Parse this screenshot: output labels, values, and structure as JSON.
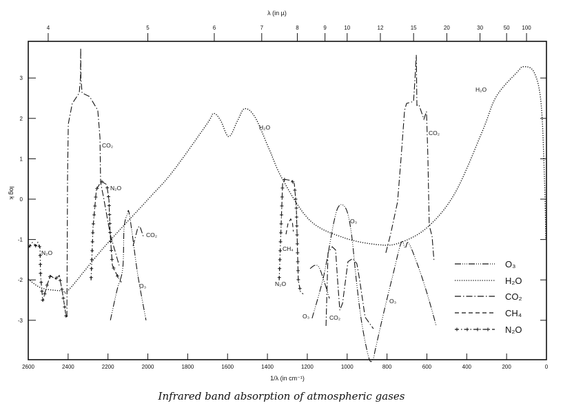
{
  "chart_data": {
    "type": "line",
    "title": "Infrared band absorption of atmospheric gases",
    "xlabel": "1/λ (in cm⁻¹)",
    "x2label": "λ (in µ)",
    "ylabel": "log k",
    "xlim": [
      2600,
      0
    ],
    "ylim": [
      -3.95,
      3.9
    ],
    "x_ticks": [
      2600,
      2400,
      2200,
      2000,
      1800,
      1600,
      1400,
      1200,
      1000,
      800,
      600,
      400,
      200,
      0
    ],
    "x_tick_labels": [
      "2600",
      "2400",
      "2200",
      "2000",
      "1800",
      "1600",
      "1400",
      "1200",
      "1000",
      "800",
      "600",
      "400",
      "200",
      "0"
    ],
    "y_ticks": [
      3,
      2,
      1,
      0,
      -1,
      -2,
      -3
    ],
    "y_tick_labels": [
      "3",
      "2",
      "1",
      "0",
      "-1",
      "-2",
      "-3"
    ],
    "x2_ticks_micron": [
      4,
      5,
      6,
      7,
      8,
      9,
      10,
      12,
      15,
      20,
      30,
      50,
      100
    ],
    "x2_tick_labels": [
      "4",
      "5",
      "6",
      "7",
      "8",
      "9",
      "10",
      "12",
      "15",
      "20",
      "30",
      "50",
      "100"
    ],
    "legend_position": "bottom-right",
    "series": [
      {
        "name": "O3",
        "label": "O₃",
        "style": "dash-dot-dot",
        "segments": [
          [
            [
              2188,
              -3.0
            ],
            [
              2154,
              -2.24
            ],
            [
              2126,
              -1.72
            ],
            [
              2119,
              -0.7
            ],
            [
              2102,
              -0.36
            ],
            [
              2095,
              -0.32
            ],
            [
              2078,
              -0.87
            ],
            [
              2050,
              -1.89
            ],
            [
              2009,
              -3.0
            ]
          ],
          [
            [
              1186,
              -1.72
            ],
            [
              1162,
              -1.64
            ],
            [
              1141,
              -1.69
            ],
            [
              1117,
              -2.01
            ],
            [
              1089,
              -2.46
            ]
          ],
          [
            [
              1176,
              -2.95
            ],
            [
              1117,
              -1.89
            ],
            [
              1065,
              -0.53
            ],
            [
              1037,
              -0.15
            ],
            [
              1003,
              -0.27
            ],
            [
              978,
              -0.87
            ],
            [
              954,
              -2.01
            ],
            [
              926,
              -3.09
            ],
            [
              890,
              -3.95
            ],
            [
              870,
              -3.95
            ],
            [
              857,
              -3.69
            ],
            [
              816,
              -2.8
            ],
            [
              771,
              -1.89
            ],
            [
              729,
              -1.08
            ],
            [
              709,
              -1.21
            ],
            [
              691,
              -1.09
            ],
            [
              643,
              -1.67
            ],
            [
              598,
              -2.35
            ],
            [
              553,
              -3.14
            ]
          ]
        ]
      },
      {
        "name": "H2O",
        "label": "H₂O",
        "style": "dotted",
        "segments": [
          [
            [
              2600,
              -1.98
            ],
            [
              2534,
              -2.2
            ],
            [
              2431,
              -2.27
            ],
            [
              2396,
              -2.24
            ],
            [
              2223,
              -1.21
            ],
            [
              1998,
              0
            ],
            [
              1877,
              0.67
            ],
            [
              1704,
              1.86
            ],
            [
              1670,
              2.12
            ],
            [
              1635,
              1.95
            ],
            [
              1594,
              1.55
            ],
            [
              1549,
              1.95
            ],
            [
              1514,
              2.24
            ],
            [
              1462,
              2.03
            ],
            [
              1393,
              1.26
            ],
            [
              1324,
              0.49
            ],
            [
              1186,
              -0.53
            ],
            [
              1013,
              -0.96
            ],
            [
              840,
              -1.13
            ],
            [
              736,
              -1.08
            ],
            [
              598,
              -0.7
            ],
            [
              459,
              0.15
            ],
            [
              321,
              1.69
            ],
            [
              252,
              2.54
            ],
            [
              148,
              3.14
            ],
            [
              114,
              3.28
            ],
            [
              62,
              3.14
            ],
            [
              27,
              2.37
            ],
            [
              10,
              0.5
            ],
            [
              3,
              -1.0
            ]
          ]
        ]
      },
      {
        "name": "CO2",
        "label": "CO₂",
        "style": "dash-dot",
        "segments": [
          [
            [
              2406,
              -2.92
            ],
            [
              2403,
              0.5
            ],
            [
              2399,
              1.86
            ],
            [
              2379,
              2.37
            ],
            [
              2344,
              2.63
            ],
            [
              2338,
              3.0
            ],
            [
              2337,
              3.74
            ],
            [
              2336,
              3.0
            ],
            [
              2330,
              2.63
            ],
            [
              2292,
              2.54
            ],
            [
              2251,
              2.2
            ],
            [
              2240,
              1.52
            ],
            [
              2237,
              0.41
            ],
            [
              2223,
              0.07
            ],
            [
              2189,
              -0.87
            ],
            [
              2154,
              -1.47
            ],
            [
              2144,
              -1.64
            ]
          ],
          [
            [
              2074,
              -1.16
            ],
            [
              2050,
              -0.7
            ],
            [
              2040,
              -0.67
            ],
            [
              2023,
              -0.92
            ]
          ],
          [
            [
              1106,
              -3.14
            ],
            [
              1096,
              -1.33
            ],
            [
              1075,
              -1.18
            ],
            [
              1058,
              -1.26
            ],
            [
              1048,
              -2.01
            ],
            [
              1037,
              -2.75
            ],
            [
              1023,
              -2.58
            ],
            [
              996,
              -1.55
            ],
            [
              972,
              -1.47
            ],
            [
              951,
              -1.6
            ],
            [
              937,
              -2.01
            ],
            [
              910,
              -2.92
            ],
            [
              868,
              -3.21
            ]
          ],
          [
            [
              806,
              -1.33
            ],
            [
              782,
              -0.87
            ],
            [
              747,
              -0.07
            ],
            [
              729,
              1.06
            ],
            [
              712,
              2.2
            ],
            [
              702,
              2.37
            ],
            [
              667,
              2.42
            ],
            [
              660,
              2.94
            ],
            [
              653,
              3.57
            ],
            [
              650,
              2.32
            ],
            [
              640,
              2.34
            ],
            [
              615,
              1.98
            ],
            [
              602,
              2.17
            ],
            [
              595,
              1.06
            ],
            [
              588,
              -0.65
            ],
            [
              574,
              -0.92
            ],
            [
              564,
              -1.55
            ]
          ]
        ]
      },
      {
        "name": "CH4",
        "label": "CH₄",
        "style": "dashed",
        "segments": [
          [
            [
              1307,
              -0.87
            ],
            [
              1297,
              -0.61
            ],
            [
              1283,
              -0.49
            ],
            [
              1274,
              -0.6
            ],
            [
              1270,
              -0.8
            ]
          ]
        ]
      },
      {
        "name": "N2O",
        "label": "N₂O",
        "style": "dash-dot-plus",
        "segments": [
          [
            [
              2600,
              -1.21
            ],
            [
              2579,
              -1.07
            ],
            [
              2562,
              -1.16
            ],
            [
              2552,
              -1.07
            ],
            [
              2541,
              -1.21
            ],
            [
              2538,
              -1.89
            ],
            [
              2527,
              -2.53
            ],
            [
              2507,
              -2.15
            ],
            [
              2489,
              -1.89
            ],
            [
              2465,
              -1.98
            ],
            [
              2444,
              -1.89
            ],
            [
              2431,
              -2.24
            ],
            [
              2420,
              -2.58
            ],
            [
              2410,
              -2.92
            ]
          ],
          [
            [
              2285,
              -2.01
            ],
            [
              2275,
              -0.7
            ],
            [
              2258,
              0.24
            ],
            [
              2234,
              0.44
            ],
            [
              2206,
              0.36
            ],
            [
              2195,
              -0.02
            ],
            [
              2189,
              -0.87
            ],
            [
              2178,
              -1.64
            ],
            [
              2154,
              -1.89
            ],
            [
              2133,
              -2.06
            ]
          ],
          [
            [
              1341,
              -2.01
            ],
            [
              1324,
              0.38
            ],
            [
              1314,
              0.49
            ],
            [
              1279,
              0.46
            ],
            [
              1265,
              0.38
            ],
            [
              1255,
              -0.19
            ],
            [
              1245,
              -2.01
            ],
            [
              1234,
              -2.3
            ],
            [
              1220,
              -2.35
            ]
          ]
        ]
      }
    ],
    "annotations": [
      "N₂O",
      "CO₂",
      "N₂O",
      "CO₂",
      "O₃",
      "H₂O",
      "CH₄",
      "N₂O",
      "O₃",
      "CO₂",
      "O₃",
      "O₃",
      "CO₂",
      "H₂O"
    ]
  },
  "caption": "Infrared band absorption of atmospheric gases"
}
